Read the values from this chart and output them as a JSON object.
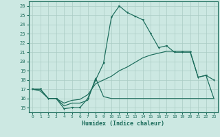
{
  "xlabel": "Humidex (Indice chaleur)",
  "background_color": "#cce8e2",
  "grid_color": "#aaccC4",
  "line_color": "#1a6b5a",
  "xlim": [
    -0.5,
    23.5
  ],
  "ylim": [
    14.5,
    26.5
  ],
  "xticks": [
    0,
    1,
    2,
    3,
    4,
    5,
    6,
    7,
    8,
    9,
    10,
    11,
    12,
    13,
    14,
    15,
    16,
    17,
    18,
    19,
    20,
    21,
    22,
    23
  ],
  "yticks": [
    15,
    16,
    17,
    18,
    19,
    20,
    21,
    22,
    23,
    24,
    25,
    26
  ],
  "curve1_x": [
    0,
    1,
    2,
    3,
    4,
    5,
    6,
    7,
    8,
    9,
    10,
    11,
    12,
    13,
    14,
    15,
    16,
    17,
    18,
    19,
    20,
    21,
    22,
    23
  ],
  "curve1_y": [
    17.0,
    17.0,
    16.0,
    16.0,
    14.9,
    15.0,
    15.0,
    16.0,
    18.0,
    19.8,
    24.8,
    26.0,
    25.3,
    24.9,
    24.5,
    23.0,
    21.5,
    21.7,
    21.0,
    21.0,
    21.0,
    18.3,
    18.5,
    18.0
  ],
  "curve2_x": [
    0,
    1,
    2,
    3,
    4,
    5,
    6,
    7,
    8,
    9,
    10,
    11,
    12,
    13,
    14,
    15,
    16,
    17,
    18,
    19,
    20,
    21,
    22,
    23
  ],
  "curve2_y": [
    17.0,
    17.0,
    16.0,
    16.0,
    15.2,
    15.5,
    15.5,
    15.8,
    18.2,
    16.2,
    16.0,
    16.0,
    16.0,
    16.0,
    16.0,
    16.0,
    16.0,
    16.0,
    16.0,
    16.0,
    16.0,
    16.0,
    16.0,
    16.0
  ],
  "curve3_x": [
    0,
    1,
    2,
    3,
    4,
    5,
    6,
    7,
    8,
    9,
    10,
    11,
    12,
    13,
    14,
    15,
    16,
    17,
    18,
    19,
    20,
    21,
    22,
    23
  ],
  "curve3_y": [
    17.0,
    16.8,
    16.0,
    16.0,
    15.5,
    15.8,
    15.9,
    16.4,
    17.6,
    18.0,
    18.4,
    19.0,
    19.4,
    19.9,
    20.4,
    20.7,
    20.9,
    21.1,
    21.1,
    21.1,
    21.1,
    18.3,
    18.5,
    16.0
  ]
}
